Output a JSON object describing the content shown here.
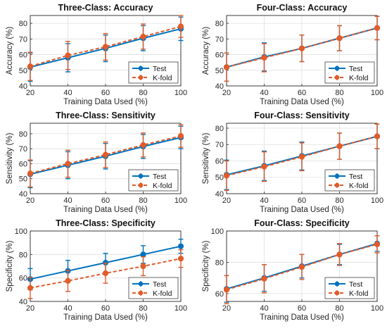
{
  "colors": {
    "test": "#0072bd",
    "kfold": "#e05c2a",
    "axis": "#262626",
    "grid": "#dfdfdf"
  },
  "chart_data": [
    {
      "type": "line",
      "title": "Three-Class: Accuracy",
      "xlabel": "Training Data Used (%)",
      "ylabel": "Accuracy (%)",
      "x": [
        20,
        40,
        60,
        80,
        100
      ],
      "xlim": [
        20,
        100
      ],
      "ylim": [
        40,
        85
      ],
      "xticks": [
        20,
        40,
        60,
        80,
        100
      ],
      "yticks": [
        40,
        50,
        60,
        70,
        80
      ],
      "grid": true,
      "legend_position": "bottom-right",
      "series": [
        {
          "name": "Test",
          "values": [
            52,
            58,
            64,
            70.5,
            76.5
          ],
          "err": [
            9,
            9,
            8.5,
            8,
            7.5
          ]
        },
        {
          "name": "K-fold",
          "values": [
            52.5,
            59.5,
            65,
            71.5,
            78
          ],
          "err": [
            9,
            9,
            8.5,
            8,
            7
          ]
        }
      ]
    },
    {
      "type": "line",
      "title": "Four-Class: Accuracy",
      "xlabel": "Training Data Used (%)",
      "ylabel": "Accuracy (%)",
      "x": [
        20,
        40,
        60,
        80,
        100
      ],
      "xlim": [
        20,
        100
      ],
      "ylim": [
        40,
        85
      ],
      "xticks": [
        20,
        40,
        60,
        80,
        100
      ],
      "yticks": [
        40,
        50,
        60,
        70,
        80
      ],
      "grid": true,
      "legend_position": "bottom-right",
      "series": [
        {
          "name": "Test",
          "values": [
            52,
            58.5,
            64,
            70.5,
            77
          ],
          "err": [
            9,
            9,
            8.5,
            8,
            7.5
          ]
        },
        {
          "name": "K-fold",
          "values": [
            52,
            58,
            64,
            70.5,
            77
          ],
          "err": [
            9,
            9,
            8.5,
            8,
            7.5
          ]
        }
      ]
    },
    {
      "type": "line",
      "title": "Three-Class: Sensitivity",
      "xlabel": "Training Data Used (%)",
      "ylabel": "Sensitivity (%)",
      "x": [
        20,
        40,
        60,
        80,
        100
      ],
      "xlim": [
        20,
        100
      ],
      "ylim": [
        40,
        87
      ],
      "xticks": [
        20,
        40,
        60,
        80,
        100
      ],
      "yticks": [
        40,
        50,
        60,
        70,
        80
      ],
      "grid": true,
      "legend_position": "bottom-right",
      "series": [
        {
          "name": "Test",
          "values": [
            53,
            59,
            65,
            71.5,
            77.5
          ],
          "err": [
            9,
            9,
            8.5,
            8,
            7.5
          ]
        },
        {
          "name": "K-fold",
          "values": [
            53.5,
            60,
            66,
            72.5,
            78.5
          ],
          "err": [
            9,
            9,
            8.5,
            8,
            7.5
          ]
        }
      ]
    },
    {
      "type": "line",
      "title": "Four-Class: Sensitivity",
      "xlabel": "Training Data Used (%)",
      "ylabel": "Sensitivity (%)",
      "x": [
        20,
        40,
        60,
        80,
        100
      ],
      "xlim": [
        20,
        100
      ],
      "ylim": [
        40,
        83
      ],
      "xticks": [
        20,
        40,
        60,
        80,
        100
      ],
      "yticks": [
        40,
        50,
        60,
        70,
        80
      ],
      "grid": true,
      "legend_position": "bottom-right",
      "series": [
        {
          "name": "Test",
          "values": [
            51.5,
            57,
            63,
            69,
            75
          ],
          "err": [
            9,
            9,
            8.5,
            8,
            7.5
          ]
        },
        {
          "name": "K-fold",
          "values": [
            51,
            56.5,
            62.5,
            69,
            75
          ],
          "err": [
            9,
            9,
            8.5,
            8,
            7.5
          ]
        }
      ]
    },
    {
      "type": "line",
      "title": "Three-Class: Specificity",
      "xlabel": "Training Data Used (%)",
      "ylabel": "Specificity (%)",
      "x": [
        20,
        40,
        60,
        80,
        100
      ],
      "xlim": [
        20,
        100
      ],
      "ylim": [
        40,
        100
      ],
      "xticks": [
        20,
        40,
        60,
        80,
        100
      ],
      "yticks": [
        40,
        60,
        80,
        100
      ],
      "grid": true,
      "legend_position": "bottom-right",
      "series": [
        {
          "name": "Test",
          "values": [
            59,
            66,
            73,
            80,
            87
          ],
          "err": [
            9,
            9,
            8,
            7.5,
            6
          ]
        },
        {
          "name": "K-fold",
          "values": [
            51.5,
            57.5,
            64,
            70,
            76.5
          ],
          "err": [
            9,
            9,
            8.5,
            8,
            7.5
          ]
        }
      ]
    },
    {
      "type": "line",
      "title": "Four-Class: Specificity",
      "xlabel": "Training Data Used (%)",
      "ylabel": "Specificity (%)",
      "x": [
        20,
        40,
        60,
        80,
        100
      ],
      "xlim": [
        20,
        100
      ],
      "ylim": [
        55,
        100
      ],
      "xticks": [
        20,
        40,
        60,
        80,
        100
      ],
      "yticks": [
        60,
        80,
        100
      ],
      "grid": true,
      "legend_position": "bottom-right",
      "series": [
        {
          "name": "Test",
          "values": [
            63,
            70,
            77.5,
            85,
            92
          ],
          "err": [
            8.5,
            8.5,
            7.5,
            6.5,
            5
          ]
        },
        {
          "name": "K-fold",
          "values": [
            62.5,
            69.5,
            77,
            85,
            91.5
          ],
          "err": [
            9,
            9,
            8,
            7,
            5.5
          ]
        }
      ]
    }
  ]
}
